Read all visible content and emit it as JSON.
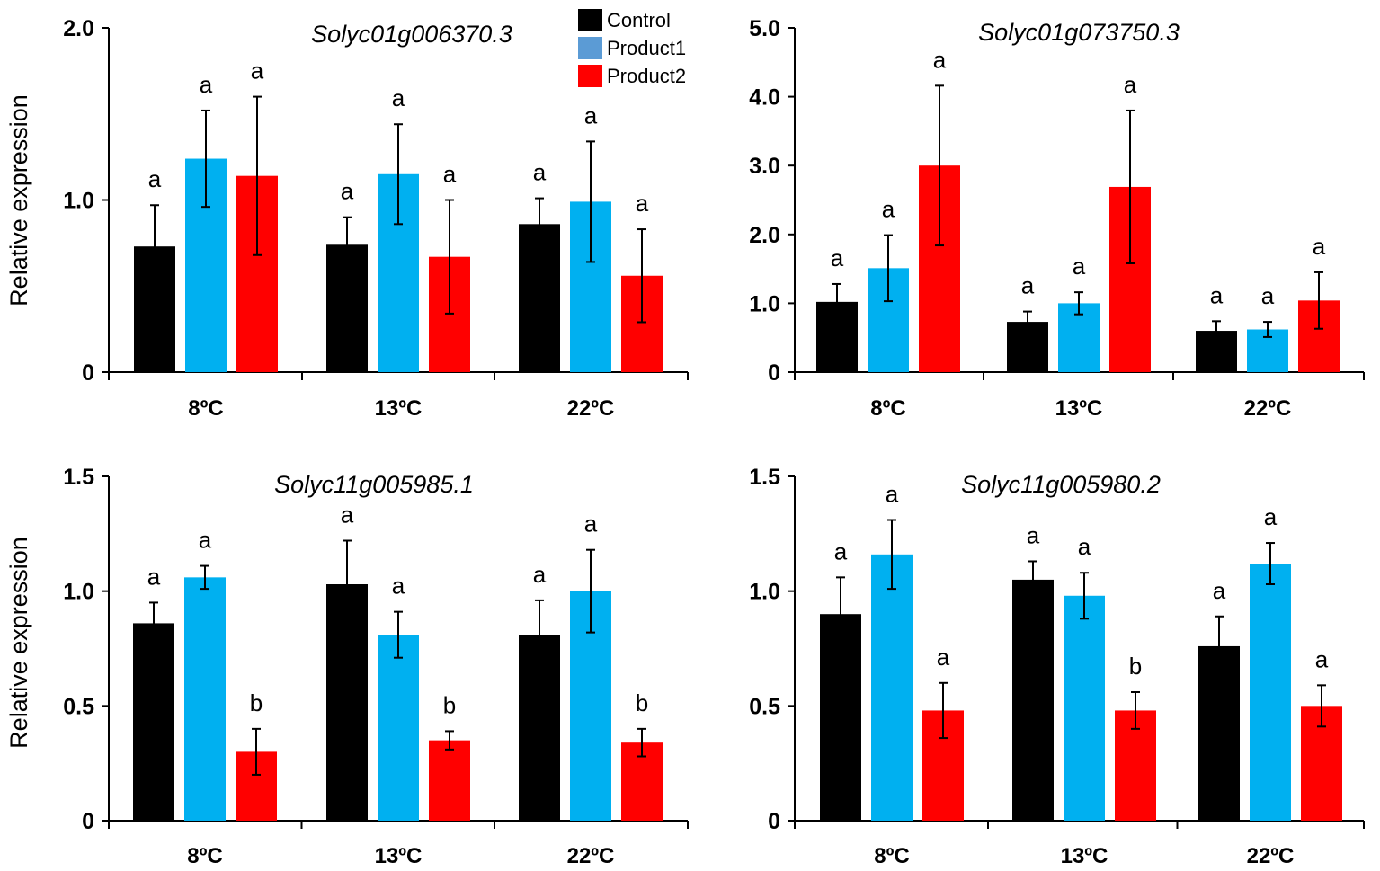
{
  "legend": [
    {
      "label": "Control",
      "color": "#000000"
    },
    {
      "label": "Product1",
      "color": "#00b0f0"
    },
    {
      "label": "Product2",
      "color": "#ff0000"
    }
  ],
  "chart_data": [
    {
      "type": "bar",
      "title": "Solyc01g006370.3",
      "ylabel": "Relative expression",
      "categories": [
        "8ºC",
        "13ºC",
        "22ºC"
      ],
      "ylim": [
        0,
        2.0
      ],
      "yticks": [
        0,
        1.0,
        2.0
      ],
      "ytick_labels": [
        "0",
        "1.0",
        "2.0"
      ],
      "series": [
        {
          "name": "Control",
          "values": [
            0.73,
            0.74,
            0.86
          ],
          "errors": [
            0.24,
            0.16,
            0.15
          ],
          "letters": [
            "a",
            "a",
            "a"
          ]
        },
        {
          "name": "Product1",
          "values": [
            1.24,
            1.15,
            0.99
          ],
          "errors": [
            0.28,
            0.29,
            0.35
          ],
          "letters": [
            "a",
            "a",
            "a"
          ]
        },
        {
          "name": "Product2",
          "values": [
            1.14,
            0.67,
            0.56
          ],
          "errors": [
            0.46,
            0.33,
            0.27
          ],
          "letters": [
            "a",
            "a",
            "a"
          ]
        }
      ]
    },
    {
      "type": "bar",
      "title": "Solyc01g073750.3",
      "ylabel": "",
      "categories": [
        "8ºC",
        "13ºC",
        "22ºC"
      ],
      "ylim": [
        0,
        5.0
      ],
      "yticks": [
        0,
        1.0,
        2.0,
        3.0,
        4.0,
        5.0
      ],
      "ytick_labels": [
        "0",
        "1.0",
        "2.0",
        "3.0",
        "4.0",
        "5.0"
      ],
      "series": [
        {
          "name": "Control",
          "values": [
            1.02,
            0.73,
            0.6
          ],
          "errors": [
            0.26,
            0.15,
            0.14
          ],
          "letters": [
            "a",
            "a",
            "a"
          ]
        },
        {
          "name": "Product1",
          "values": [
            1.51,
            1.0,
            0.62
          ],
          "errors": [
            0.48,
            0.16,
            0.11
          ],
          "letters": [
            "a",
            "a",
            "a"
          ]
        },
        {
          "name": "Product2",
          "values": [
            3.0,
            2.69,
            1.04
          ],
          "errors": [
            1.16,
            1.11,
            0.41
          ],
          "letters": [
            "a",
            "a",
            "a"
          ]
        }
      ]
    },
    {
      "type": "bar",
      "title": "Solyc11g005985.1",
      "ylabel": "Relative expression",
      "categories": [
        "8ºC",
        "13ºC",
        "22ºC"
      ],
      "ylim": [
        0,
        1.5
      ],
      "yticks": [
        0,
        0.5,
        1.0,
        1.5
      ],
      "ytick_labels": [
        "0",
        "0.5",
        "1.0",
        "1.5"
      ],
      "series": [
        {
          "name": "Control",
          "values": [
            0.86,
            1.03,
            0.81
          ],
          "errors": [
            0.09,
            0.19,
            0.15
          ],
          "letters": [
            "a",
            "a",
            "a"
          ]
        },
        {
          "name": "Product1",
          "values": [
            1.06,
            0.81,
            1.0
          ],
          "errors": [
            0.05,
            0.1,
            0.18
          ],
          "letters": [
            "a",
            "a",
            "a"
          ]
        },
        {
          "name": "Product2",
          "values": [
            0.3,
            0.35,
            0.34
          ],
          "errors": [
            0.1,
            0.04,
            0.06
          ],
          "letters": [
            "b",
            "b",
            "b"
          ]
        }
      ]
    },
    {
      "type": "bar",
      "title": "Solyc11g005980.2",
      "ylabel": "",
      "categories": [
        "8ºC",
        "13ºC",
        "22ºC"
      ],
      "ylim": [
        0,
        1.5
      ],
      "yticks": [
        0,
        0.5,
        1.0,
        1.5
      ],
      "ytick_labels": [
        "0",
        "0.5",
        "1.0",
        "1.5"
      ],
      "series": [
        {
          "name": "Control",
          "values": [
            0.9,
            1.05,
            0.76
          ],
          "errors": [
            0.16,
            0.08,
            0.13
          ],
          "letters": [
            "a",
            "a",
            "a"
          ]
        },
        {
          "name": "Product1",
          "values": [
            1.16,
            0.98,
            1.12
          ],
          "errors": [
            0.15,
            0.1,
            0.09
          ],
          "letters": [
            "a",
            "a",
            "a"
          ]
        },
        {
          "name": "Product2",
          "values": [
            0.48,
            0.48,
            0.5
          ],
          "errors": [
            0.12,
            0.08,
            0.09
          ],
          "letters": [
            "a",
            "b",
            "a"
          ]
        }
      ]
    }
  ]
}
